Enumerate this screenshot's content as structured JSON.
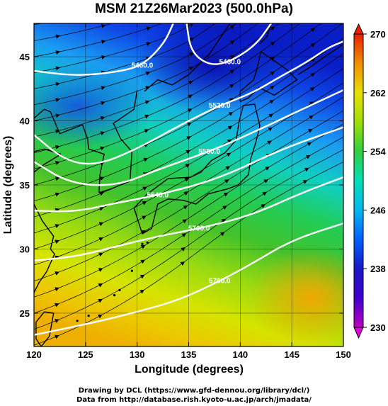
{
  "title": "MSM 21Z26Mar2023 (500.0hPa)",
  "footer": {
    "line1": "Drawing by DCL (https://www.gfd-dennou.org/library/dcl/)",
    "line2": "Data from http://database.rish.kyoto-u.ac.jp/arch/jmadata/"
  },
  "chart_data": {
    "type": "heatmap",
    "title": "MSM 21Z26Mar2023 (500.0hPa)",
    "xlabel": "Longitude (degrees)",
    "ylabel": "Latitude  (degrees)",
    "xlim": [
      120,
      150
    ],
    "ylim": [
      22.4,
      47.6
    ],
    "xticks": [
      120,
      125,
      130,
      135,
      140,
      145,
      150
    ],
    "yticks": [
      25,
      30,
      35,
      40,
      45
    ],
    "colorbar": {
      "ticks": [
        230,
        238,
        246,
        254,
        262,
        270
      ],
      "range": [
        230,
        270
      ],
      "colors": [
        "#c000c0",
        "#1818c8",
        "#0050ff",
        "#00b0f0",
        "#00e0c0",
        "#20d860",
        "#40c020",
        "#a8e000",
        "#e8e800",
        "#f0b000",
        "#f07000",
        "#e82000"
      ]
    },
    "contours": [
      {
        "label": "5460.0",
        "points": [
          [
            120,
            43.9
          ],
          [
            124,
            43.5
          ],
          [
            128,
            43.8
          ],
          [
            130.5,
            44.3
          ],
          [
            132.6,
            46.0
          ],
          [
            133.5,
            47.6
          ]
        ]
      },
      {
        "label": "5460.0",
        "points": [
          [
            134.8,
            47.6
          ],
          [
            135.2,
            45.4
          ],
          [
            137,
            44.3
          ],
          [
            139,
            44.6
          ],
          [
            141.5,
            45.9
          ],
          [
            143,
            47.6
          ]
        ]
      },
      {
        "label": "5520.0",
        "points": [
          [
            120,
            38.9
          ],
          [
            123,
            36.9
          ],
          [
            126,
            36.5
          ],
          [
            130,
            37.8
          ],
          [
            134,
            39.6
          ],
          [
            138,
            41.2
          ],
          [
            141,
            42.1
          ],
          [
            144,
            43.5
          ],
          [
            146.5,
            44.6
          ],
          [
            148.5,
            45.7
          ],
          [
            150,
            46.2
          ]
        ]
      },
      {
        "label": "5580.0",
        "points": [
          [
            120,
            36.8
          ],
          [
            123.5,
            35.1
          ],
          [
            128,
            34.9
          ],
          [
            132,
            36.2
          ],
          [
            137,
            37.6
          ],
          [
            141,
            39.0
          ],
          [
            146,
            40.9
          ],
          [
            150,
            42.4
          ]
        ]
      },
      {
        "label": "5640.0",
        "points": [
          [
            120,
            33.0
          ],
          [
            124,
            32.9
          ],
          [
            128,
            33.6
          ],
          [
            132,
            34.2
          ],
          [
            138,
            35.5
          ],
          [
            144,
            37.8
          ],
          [
            150,
            39.5
          ]
        ]
      },
      {
        "label": "5700.0",
        "points": [
          [
            120,
            29.1
          ],
          [
            124,
            29.4
          ],
          [
            128,
            30.2
          ],
          [
            132,
            31.0
          ],
          [
            136,
            31.6
          ],
          [
            141,
            32.6
          ],
          [
            146,
            34.4
          ],
          [
            150,
            35.6
          ]
        ]
      },
      {
        "label": "5760.0",
        "points": [
          [
            120,
            23.3
          ],
          [
            126,
            24.3
          ],
          [
            130,
            25.1
          ],
          [
            134,
            26.0
          ],
          [
            138,
            27.5
          ],
          [
            141,
            28.8
          ],
          [
            145,
            30.7
          ],
          [
            150,
            32.0
          ]
        ]
      }
    ]
  }
}
